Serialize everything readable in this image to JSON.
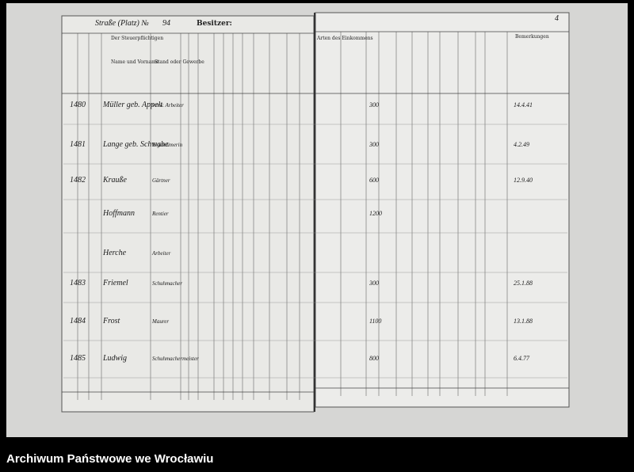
{
  "header": {
    "street_label": "Straße (Platz) №",
    "street_number": "94",
    "owner_label": "Besitzer:",
    "page_number": "4"
  },
  "columns_left": [
    "Der Steuerpflichtigen",
    "Name und Vorname",
    "Stand oder Gewerbe"
  ],
  "columns_right": [
    "Arten des Einkommens",
    "Bemerkungen"
  ],
  "rows": [
    {
      "number": "1480",
      "name": "Müller geb. Appelt",
      "occupation": "verw. Arbeiter",
      "amount": "300",
      "remark": "14.4.41"
    },
    {
      "number": "1481",
      "name": "Lange geb. Schwabe",
      "occupation": "Eigentümerin",
      "amount": "300",
      "remark": "4.2.49"
    },
    {
      "number": "1482",
      "name": "Krauße",
      "occupation": "Gärtner",
      "amount": "600",
      "remark": "12.9.40"
    },
    {
      "name": "Hoffmann",
      "occupation": "Rentier",
      "amount": "1200"
    },
    {
      "name": "Herche",
      "occupation": "Arbeiter"
    },
    {
      "number": "1483",
      "name": "Friemel",
      "occupation": "Schuhmacher",
      "amount": "300",
      "remark": "25.1.88"
    },
    {
      "number": "1484",
      "name": "Frost",
      "occupation": "Maurer",
      "amount": "1100",
      "remark": "13.1.88"
    },
    {
      "number": "1485",
      "name": "Ludwig",
      "occupation": "Schuhmachermeister",
      "amount": "800",
      "remark": "6.4.77"
    }
  ],
  "footer": {
    "caption": "Archiwum Państwowe we Wrocławiu"
  }
}
